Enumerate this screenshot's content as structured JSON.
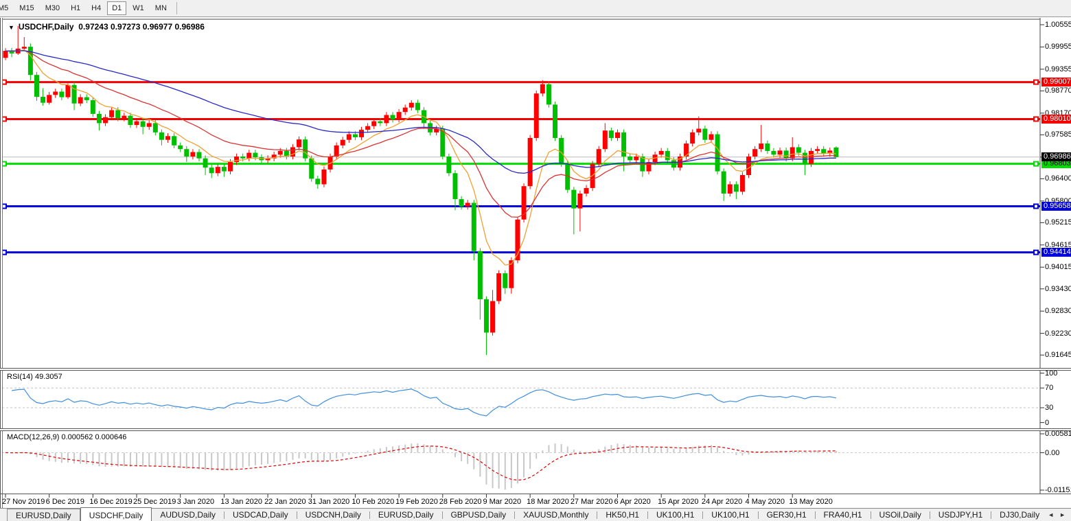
{
  "window": {
    "toolbar": {
      "timeframes": [
        "M5",
        "M15",
        "M30",
        "H1",
        "H4",
        "D1",
        "W1",
        "MN"
      ],
      "active_timeframe": "D1"
    }
  },
  "title_bar": {
    "dropdown_icon": "▼",
    "symbol": "USDCHF,Daily",
    "open": "0.97243",
    "high": "0.97273",
    "low": "0.96977",
    "close": "0.96986"
  },
  "price_axis": {
    "ticks": [
      1.00555,
      0.99955,
      0.99355,
      0.9877,
      0.9817,
      0.97585,
      0.96985,
      0.964,
      0.958,
      0.95215,
      0.94615,
      0.94015,
      0.9343,
      0.9283,
      0.9223,
      0.91645
    ]
  },
  "levels": [
    {
      "price": 0.99007,
      "label": "0.99007",
      "color": "#F50000",
      "text_color": "#FFFFFF"
    },
    {
      "price": 0.9801,
      "label": "0.98010",
      "color": "#F50000",
      "text_color": "#FFFFFF"
    },
    {
      "price": 0.96803,
      "label": "0.96803",
      "color": "#00DC00",
      "text_color": "#000000"
    },
    {
      "price": 0.95658,
      "label": "0.95658",
      "color": "#0000DC",
      "text_color": "#FFFFFF"
    },
    {
      "price": 0.94414,
      "label": "0.94414",
      "color": "#0000DC",
      "text_color": "#FFFFFF"
    }
  ],
  "current_price": {
    "price": 0.96986,
    "label": "0.96986",
    "line_color": "#BBBBBB",
    "bg": "#000000",
    "text_color": "#FFFFFF"
  },
  "indicators": {
    "rsi": {
      "name": "RSI(14)",
      "value": "49.3057",
      "period": 14,
      "ticks": [
        100,
        70,
        30,
        0
      ],
      "grid": [
        70,
        30
      ],
      "color": "#3E8EDE"
    },
    "macd": {
      "name": "MACD(12,26,9)",
      "value_main": "0.000562",
      "value_signal": "0.000646",
      "ticks": [
        "0.005818",
        "0.00",
        "-0.01151"
      ],
      "max": 0.005818,
      "min": -0.01151,
      "hist_color": "#C8C8C8",
      "signal_color": "#E00000"
    }
  },
  "date_axis": {
    "labels": [
      "27 Nov 2019",
      "6 Dec 2019",
      "16 Dec 2019",
      "25 Dec 2019",
      "3 Jan 2020",
      "13 Jan 2020",
      "22 Jan 2020",
      "31 Jan 2020",
      "10 Feb 2020",
      "19 Feb 2020",
      "28 Feb 2020",
      "9 Mar 2020",
      "18 Mar 2020",
      "27 Mar 2020",
      "6 Apr 2020",
      "15 Apr 2020",
      "24 Apr 2020",
      "4 May 2020",
      "13 May 2020"
    ],
    "bars_per_label": 7
  },
  "tab_bar": {
    "tabs": [
      "EURUSD,Daily",
      "USDCHF,Daily",
      "AUDUSD,Daily",
      "USDCAD,Daily",
      "USDCNH,Daily",
      "EURUSD,Daily",
      "GBPUSD,Daily",
      "XAUUSD,Monthly",
      "HK50,H1",
      "UK100,H1",
      "UK100,H1",
      "GER30,H1",
      "FRA40,H1",
      "USOil,Daily",
      "USDJPY,H1",
      "DJ30,Daily"
    ],
    "active_index": 1,
    "left_arrow": "◄",
    "right_arrow": "►"
  },
  "chart_data": {
    "type": "candlestick",
    "symbol": "USDCHF",
    "timeframe": "Daily",
    "title": "USDCHF,Daily 0.97243 0.97273 0.96977 0.96986",
    "y_axis_range": [
      0.91645,
      1.00555
    ],
    "colors": {
      "bull": "#FF0000",
      "bear": "#00BE00",
      "grid": "#C8C8C8",
      "background": "#FFFFFF"
    },
    "moving_averages": [
      {
        "period": 8,
        "type": "ema",
        "color": "#F0A030"
      },
      {
        "period": 21,
        "type": "ema",
        "color": "#DC3232"
      },
      {
        "period": 55,
        "type": "ema",
        "color": "#2828C8"
      }
    ],
    "ohlc": [
      [
        0.9966,
        0.9992,
        0.996,
        0.9985
      ],
      [
        0.9985,
        0.9993,
        0.9968,
        0.9978
      ],
      [
        0.9978,
        1.0052,
        0.9974,
        0.9991
      ],
      [
        0.9991,
        1.0022,
        0.9986,
        0.9996
      ],
      [
        0.9996,
        1.0005,
        0.9905,
        0.992
      ],
      [
        0.992,
        0.9928,
        0.985,
        0.9861
      ],
      [
        0.9861,
        0.9884,
        0.9837,
        0.9845
      ],
      [
        0.9845,
        0.9874,
        0.984,
        0.9866
      ],
      [
        0.9866,
        0.9883,
        0.9858,
        0.9875
      ],
      [
        0.9875,
        0.9883,
        0.9852,
        0.986
      ],
      [
        0.986,
        0.9897,
        0.9855,
        0.9893
      ],
      [
        0.9893,
        0.9901,
        0.9825,
        0.9843
      ],
      [
        0.9843,
        0.9868,
        0.9836,
        0.986
      ],
      [
        0.986,
        0.9868,
        0.9844,
        0.9852
      ],
      [
        0.9852,
        0.986,
        0.9807,
        0.9815
      ],
      [
        0.9815,
        0.9823,
        0.977,
        0.979
      ],
      [
        0.979,
        0.9814,
        0.9782,
        0.9806
      ],
      [
        0.9806,
        0.9833,
        0.9798,
        0.9825
      ],
      [
        0.9825,
        0.9833,
        0.9795,
        0.9803
      ],
      [
        0.9803,
        0.9818,
        0.9795,
        0.981
      ],
      [
        0.981,
        0.9818,
        0.9777,
        0.9785
      ],
      [
        0.9785,
        0.9803,
        0.9777,
        0.9795
      ],
      [
        0.9795,
        0.9803,
        0.976,
        0.978
      ],
      [
        0.978,
        0.9798,
        0.9772,
        0.979
      ],
      [
        0.979,
        0.9798,
        0.9757,
        0.9765
      ],
      [
        0.9765,
        0.9773,
        0.973,
        0.9745
      ],
      [
        0.9745,
        0.9763,
        0.9737,
        0.9755
      ],
      [
        0.9755,
        0.9763,
        0.9722,
        0.973
      ],
      [
        0.973,
        0.9738,
        0.9712,
        0.972
      ],
      [
        0.972,
        0.9728,
        0.9685,
        0.97
      ],
      [
        0.97,
        0.972,
        0.9692,
        0.9712
      ],
      [
        0.9712,
        0.972,
        0.9687,
        0.9695
      ],
      [
        0.9695,
        0.9703,
        0.965,
        0.967
      ],
      [
        0.967,
        0.9678,
        0.9642,
        0.9655
      ],
      [
        0.9655,
        0.968,
        0.9647,
        0.9672
      ],
      [
        0.9672,
        0.968,
        0.9645,
        0.966
      ],
      [
        0.966,
        0.9693,
        0.9652,
        0.9685
      ],
      [
        0.9685,
        0.9708,
        0.9677,
        0.97
      ],
      [
        0.97,
        0.9708,
        0.9687,
        0.9695
      ],
      [
        0.9695,
        0.9718,
        0.9687,
        0.971
      ],
      [
        0.971,
        0.9718,
        0.969,
        0.9698
      ],
      [
        0.9698,
        0.9706,
        0.9682,
        0.969
      ],
      [
        0.969,
        0.9703,
        0.9682,
        0.9695
      ],
      [
        0.9695,
        0.9713,
        0.9687,
        0.9705
      ],
      [
        0.9705,
        0.9723,
        0.9697,
        0.9715
      ],
      [
        0.9715,
        0.9723,
        0.9692,
        0.97
      ],
      [
        0.97,
        0.9733,
        0.9692,
        0.9725
      ],
      [
        0.9725,
        0.9754,
        0.9717,
        0.9746
      ],
      [
        0.9746,
        0.9754,
        0.9687,
        0.9695
      ],
      [
        0.9695,
        0.9703,
        0.9632,
        0.964
      ],
      [
        0.964,
        0.9648,
        0.9613,
        0.9625
      ],
      [
        0.9625,
        0.9673,
        0.9617,
        0.9665
      ],
      [
        0.9665,
        0.9708,
        0.9657,
        0.97
      ],
      [
        0.97,
        0.9738,
        0.9692,
        0.973
      ],
      [
        0.973,
        0.9753,
        0.9722,
        0.9745
      ],
      [
        0.9745,
        0.9768,
        0.9737,
        0.976
      ],
      [
        0.976,
        0.9768,
        0.9744,
        0.9752
      ],
      [
        0.9752,
        0.978,
        0.9744,
        0.9772
      ],
      [
        0.9772,
        0.979,
        0.9764,
        0.9782
      ],
      [
        0.9782,
        0.9803,
        0.9774,
        0.9795
      ],
      [
        0.9795,
        0.9803,
        0.9782,
        0.979
      ],
      [
        0.979,
        0.982,
        0.9782,
        0.9812
      ],
      [
        0.9812,
        0.982,
        0.9792,
        0.98
      ],
      [
        0.98,
        0.9828,
        0.9792,
        0.982
      ],
      [
        0.982,
        0.984,
        0.9812,
        0.9832
      ],
      [
        0.9832,
        0.9852,
        0.9824,
        0.9845
      ],
      [
        0.9845,
        0.9853,
        0.9817,
        0.9825
      ],
      [
        0.9825,
        0.9833,
        0.9775,
        0.979
      ],
      [
        0.979,
        0.9798,
        0.9757,
        0.9765
      ],
      [
        0.9765,
        0.9783,
        0.9757,
        0.9775
      ],
      [
        0.9775,
        0.9783,
        0.9692,
        0.97
      ],
      [
        0.97,
        0.9708,
        0.9647,
        0.9655
      ],
      [
        0.9655,
        0.9663,
        0.9555,
        0.9585
      ],
      [
        0.9585,
        0.9593,
        0.9557,
        0.9565
      ],
      [
        0.9565,
        0.9583,
        0.9557,
        0.9575
      ],
      [
        0.9575,
        0.9583,
        0.942,
        0.9445
      ],
      [
        0.9445,
        0.9453,
        0.926,
        0.9315
      ],
      [
        0.9315,
        0.9323,
        0.91645,
        0.9225
      ],
      [
        0.9225,
        0.934,
        0.9217,
        0.931
      ],
      [
        0.931,
        0.9393,
        0.9302,
        0.9385
      ],
      [
        0.9385,
        0.9393,
        0.9329,
        0.9345
      ],
      [
        0.9345,
        0.9428,
        0.933,
        0.942
      ],
      [
        0.942,
        0.9538,
        0.9412,
        0.953
      ],
      [
        0.953,
        0.9628,
        0.9522,
        0.962
      ],
      [
        0.962,
        0.9758,
        0.9612,
        0.975
      ],
      [
        0.975,
        0.9878,
        0.9742,
        0.987
      ],
      [
        0.987,
        0.9906,
        0.9862,
        0.9895
      ],
      [
        0.9895,
        0.9903,
        0.9832,
        0.984
      ],
      [
        0.984,
        0.9848,
        0.9742,
        0.975
      ],
      [
        0.975,
        0.9758,
        0.9672,
        0.968
      ],
      [
        0.968,
        0.9688,
        0.9602,
        0.961
      ],
      [
        0.961,
        0.9618,
        0.949,
        0.956
      ],
      [
        0.956,
        0.9608,
        0.9498,
        0.96
      ],
      [
        0.96,
        0.9623,
        0.9592,
        0.9615
      ],
      [
        0.9615,
        0.9688,
        0.9607,
        0.968
      ],
      [
        0.968,
        0.9728,
        0.9672,
        0.972
      ],
      [
        0.972,
        0.979,
        0.9712,
        0.977
      ],
      [
        0.977,
        0.9778,
        0.9742,
        0.975
      ],
      [
        0.975,
        0.9773,
        0.9742,
        0.9765
      ],
      [
        0.9765,
        0.9773,
        0.966,
        0.97
      ],
      [
        0.97,
        0.9708,
        0.9682,
        0.969
      ],
      [
        0.969,
        0.9708,
        0.9682,
        0.97
      ],
      [
        0.97,
        0.9708,
        0.9645,
        0.966
      ],
      [
        0.966,
        0.9693,
        0.9652,
        0.9685
      ],
      [
        0.9685,
        0.9713,
        0.9677,
        0.9705
      ],
      [
        0.9705,
        0.9723,
        0.9697,
        0.9715
      ],
      [
        0.9715,
        0.9723,
        0.9682,
        0.969
      ],
      [
        0.969,
        0.9698,
        0.9662,
        0.967
      ],
      [
        0.967,
        0.9708,
        0.9662,
        0.97
      ],
      [
        0.97,
        0.9743,
        0.9692,
        0.9735
      ],
      [
        0.9735,
        0.9773,
        0.9727,
        0.9765
      ],
      [
        0.9765,
        0.9808,
        0.9757,
        0.9775
      ],
      [
        0.9775,
        0.9783,
        0.9737,
        0.9745
      ],
      [
        0.9745,
        0.9768,
        0.9737,
        0.976
      ],
      [
        0.976,
        0.9768,
        0.9652,
        0.966
      ],
      [
        0.966,
        0.9668,
        0.958,
        0.96
      ],
      [
        0.96,
        0.9633,
        0.9592,
        0.9625
      ],
      [
        0.9625,
        0.9633,
        0.9585,
        0.9605
      ],
      [
        0.9605,
        0.9658,
        0.9597,
        0.965
      ],
      [
        0.965,
        0.9708,
        0.9642,
        0.97
      ],
      [
        0.97,
        0.9728,
        0.9692,
        0.972
      ],
      [
        0.972,
        0.9785,
        0.9712,
        0.9735
      ],
      [
        0.9735,
        0.9743,
        0.9707,
        0.9715
      ],
      [
        0.9715,
        0.9723,
        0.9697,
        0.9705
      ],
      [
        0.9705,
        0.9724,
        0.9697,
        0.9716
      ],
      [
        0.9716,
        0.9724,
        0.9687,
        0.9695
      ],
      [
        0.9695,
        0.9752,
        0.9687,
        0.9725
      ],
      [
        0.9725,
        0.9733,
        0.9702,
        0.971
      ],
      [
        0.971,
        0.9718,
        0.965,
        0.968
      ],
      [
        0.968,
        0.9723,
        0.9672,
        0.9715
      ],
      [
        0.9715,
        0.9728,
        0.9707,
        0.972
      ],
      [
        0.972,
        0.9728,
        0.97,
        0.9708
      ],
      [
        0.9708,
        0.9724,
        0.97,
        0.9716
      ],
      [
        0.97243,
        0.97273,
        0.96977,
        0.96986
      ]
    ]
  }
}
